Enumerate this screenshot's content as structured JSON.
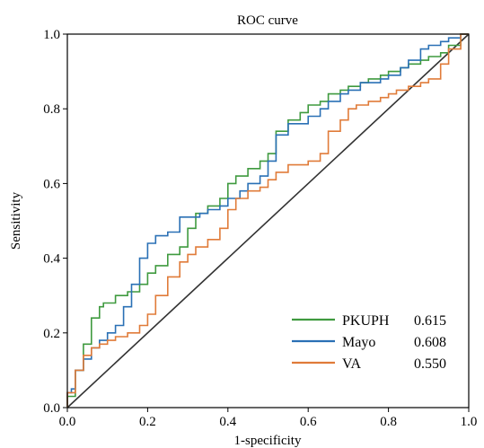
{
  "chart_data": {
    "type": "line",
    "title": "ROC curve",
    "xlabel": "1-specificity",
    "ylabel": "Sensitivity",
    "xlim": [
      0,
      1
    ],
    "ylim": [
      0,
      1
    ],
    "xticks": [
      "0.0",
      "0.2",
      "0.4",
      "0.6",
      "0.8",
      "1.0"
    ],
    "yticks": [
      "0.0",
      "0.2",
      "0.4",
      "0.6",
      "0.8",
      "1.0"
    ],
    "grid": false,
    "legend": "bottom-right",
    "reference_line": {
      "x": [
        0,
        1
      ],
      "y": [
        0,
        1
      ],
      "color": "#333333"
    },
    "series": [
      {
        "name": "PKUPH",
        "value": "0.615",
        "color": "#3f9a3f",
        "x": [
          0,
          0.02,
          0.04,
          0.06,
          0.08,
          0.09,
          0.12,
          0.15,
          0.18,
          0.2,
          0.22,
          0.25,
          0.28,
          0.3,
          0.32,
          0.35,
          0.38,
          0.4,
          0.42,
          0.45,
          0.48,
          0.5,
          0.52,
          0.55,
          0.58,
          0.6,
          0.63,
          0.65,
          0.68,
          0.7,
          0.73,
          0.75,
          0.78,
          0.8,
          0.83,
          0.85,
          0.88,
          0.9,
          0.93,
          0.95,
          0.98,
          1
        ],
        "y": [
          0,
          0.03,
          0.1,
          0.17,
          0.24,
          0.27,
          0.28,
          0.3,
          0.31,
          0.33,
          0.36,
          0.38,
          0.41,
          0.43,
          0.48,
          0.52,
          0.54,
          0.56,
          0.6,
          0.62,
          0.64,
          0.66,
          0.68,
          0.74,
          0.77,
          0.79,
          0.81,
          0.82,
          0.84,
          0.85,
          0.86,
          0.87,
          0.88,
          0.89,
          0.9,
          0.91,
          0.92,
          0.93,
          0.94,
          0.95,
          0.97,
          1
        ]
      },
      {
        "name": "Mayo",
        "value": "0.608",
        "color": "#2a70b5",
        "x": [
          0,
          0.01,
          0.02,
          0.04,
          0.06,
          0.08,
          0.1,
          0.12,
          0.14,
          0.16,
          0.18,
          0.2,
          0.22,
          0.25,
          0.28,
          0.3,
          0.33,
          0.35,
          0.38,
          0.4,
          0.43,
          0.45,
          0.48,
          0.5,
          0.52,
          0.55,
          0.58,
          0.6,
          0.63,
          0.65,
          0.68,
          0.7,
          0.73,
          0.75,
          0.78,
          0.8,
          0.83,
          0.85,
          0.88,
          0.9,
          0.93,
          0.95,
          0.98,
          1
        ],
        "y": [
          0,
          0.04,
          0.05,
          0.1,
          0.13,
          0.16,
          0.18,
          0.2,
          0.22,
          0.27,
          0.33,
          0.4,
          0.44,
          0.46,
          0.47,
          0.51,
          0.51,
          0.52,
          0.53,
          0.54,
          0.56,
          0.58,
          0.6,
          0.62,
          0.66,
          0.73,
          0.76,
          0.76,
          0.78,
          0.8,
          0.82,
          0.84,
          0.85,
          0.87,
          0.87,
          0.88,
          0.89,
          0.91,
          0.93,
          0.96,
          0.97,
          0.98,
          0.99,
          1
        ]
      },
      {
        "name": "VA",
        "value": "0.550",
        "color": "#e07b39",
        "x": [
          0,
          0.02,
          0.04,
          0.06,
          0.08,
          0.1,
          0.12,
          0.15,
          0.18,
          0.2,
          0.22,
          0.25,
          0.28,
          0.3,
          0.32,
          0.35,
          0.38,
          0.4,
          0.42,
          0.45,
          0.48,
          0.5,
          0.52,
          0.55,
          0.58,
          0.6,
          0.63,
          0.65,
          0.68,
          0.7,
          0.72,
          0.75,
          0.78,
          0.8,
          0.82,
          0.85,
          0.88,
          0.9,
          0.93,
          0.95,
          0.98,
          1
        ],
        "y": [
          0,
          0.04,
          0.1,
          0.14,
          0.16,
          0.17,
          0.18,
          0.19,
          0.2,
          0.22,
          0.25,
          0.3,
          0.35,
          0.39,
          0.41,
          0.43,
          0.45,
          0.48,
          0.53,
          0.56,
          0.58,
          0.59,
          0.61,
          0.63,
          0.65,
          0.65,
          0.66,
          0.68,
          0.74,
          0.77,
          0.8,
          0.81,
          0.82,
          0.83,
          0.84,
          0.85,
          0.86,
          0.87,
          0.88,
          0.92,
          0.96,
          1
        ]
      }
    ]
  }
}
